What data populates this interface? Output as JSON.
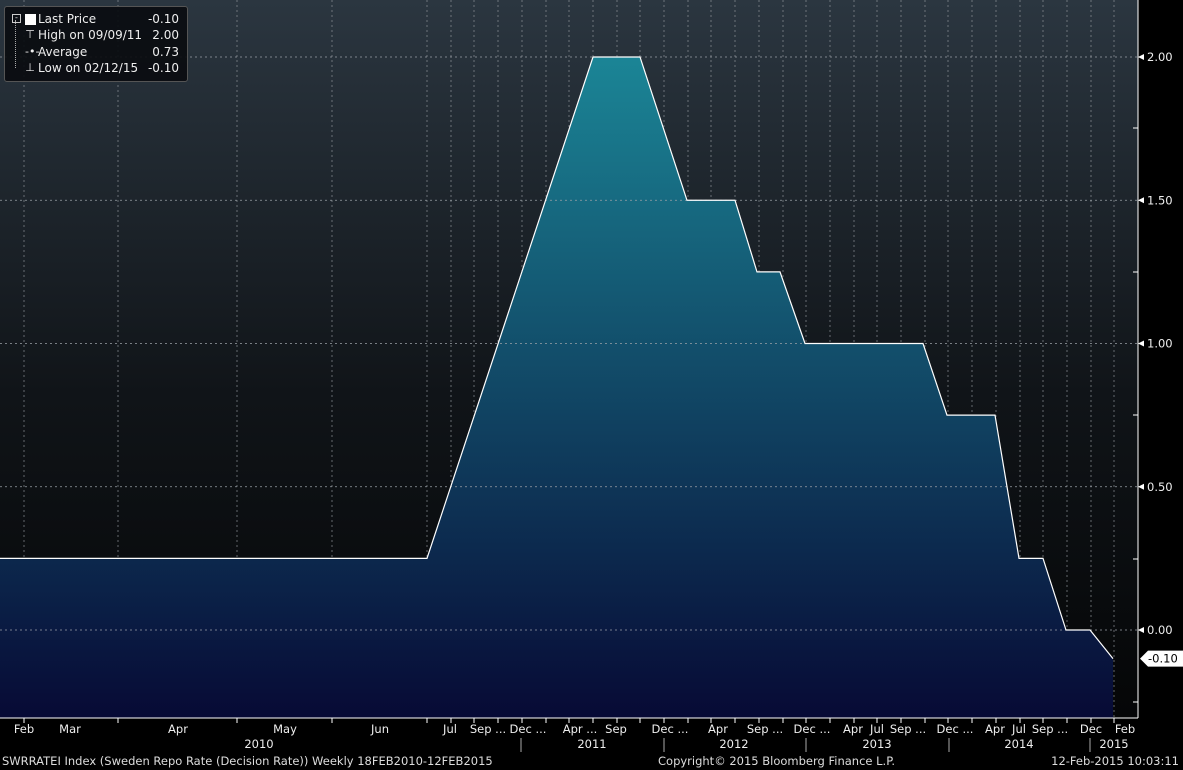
{
  "legend": {
    "rows": [
      {
        "label": "Last Price",
        "value": "-0.10",
        "icon": "square-icon"
      },
      {
        "label": "High on 09/09/11",
        "value": "2.00",
        "icon": "high-marker-icon"
      },
      {
        "label": "Average",
        "value": "0.73",
        "icon": "average-marker-icon"
      },
      {
        "label": "Low on 02/12/15",
        "value": "-0.10",
        "icon": "low-marker-icon"
      }
    ]
  },
  "footer": {
    "series_desc": "SWRRATEI Index (Sweden Repo Rate (Decision Rate))  Weekly 18FEB2010-12FEB2015",
    "copyright": "Copyright© 2015 Bloomberg Finance L.P.",
    "timestamp": "12-Feb-2015 10:03:11"
  },
  "chart_data": {
    "type": "area",
    "title": "",
    "xlabel": "",
    "ylabel": "",
    "ylim": [
      -0.3,
      2.2
    ],
    "y_ticks": [
      "2.00",
      "1.50",
      "1.00",
      "0.50",
      "0.00"
    ],
    "y_tick_values": [
      2.0,
      1.5,
      1.0,
      0.5,
      0.0
    ],
    "y_axis_side": "right",
    "last_value_label": "-0.10",
    "x_tick_labels": [
      "Feb",
      "Mar",
      "Apr",
      "May",
      "Jun",
      "Jul",
      "Sep ...",
      "Dec ...",
      "Apr ...",
      "Sep",
      "Dec ...",
      "Apr",
      "Sep ...",
      "Dec ...",
      "Apr",
      "Jul",
      "Sep ...",
      "Dec ...",
      "Apr",
      "Jul",
      "Sep ...",
      "Dec",
      "Feb"
    ],
    "x_year_labels": [
      "2010",
      "2011",
      "2012",
      "2013",
      "2014",
      "2015"
    ],
    "grid": true,
    "colors": {
      "fill_top": "#1b8596",
      "fill_bottom": "#070a35",
      "line": "#ffffff"
    },
    "series": [
      {
        "points": [
          [
            "2010-02-18",
            0.25
          ],
          [
            "2010-07-01",
            0.25
          ],
          [
            "2011-07-06",
            2.0
          ],
          [
            "2011-09-09",
            2.0
          ],
          [
            "2011-12-14",
            1.5
          ],
          [
            "2012-02-15",
            1.5
          ],
          [
            "2012-07-04",
            1.25
          ],
          [
            "2012-09-05",
            1.25
          ],
          [
            "2012-12-12",
            1.0
          ],
          [
            "2013-12-11",
            1.0
          ],
          [
            "2013-12-18",
            0.75
          ],
          [
            "2014-07-02",
            0.75
          ],
          [
            "2014-07-09",
            0.25
          ],
          [
            "2014-10-22",
            0.25
          ],
          [
            "2014-10-29",
            0.0
          ],
          [
            "2015-02-04",
            0.0
          ],
          [
            "2015-02-12",
            -0.1
          ]
        ]
      }
    ]
  }
}
